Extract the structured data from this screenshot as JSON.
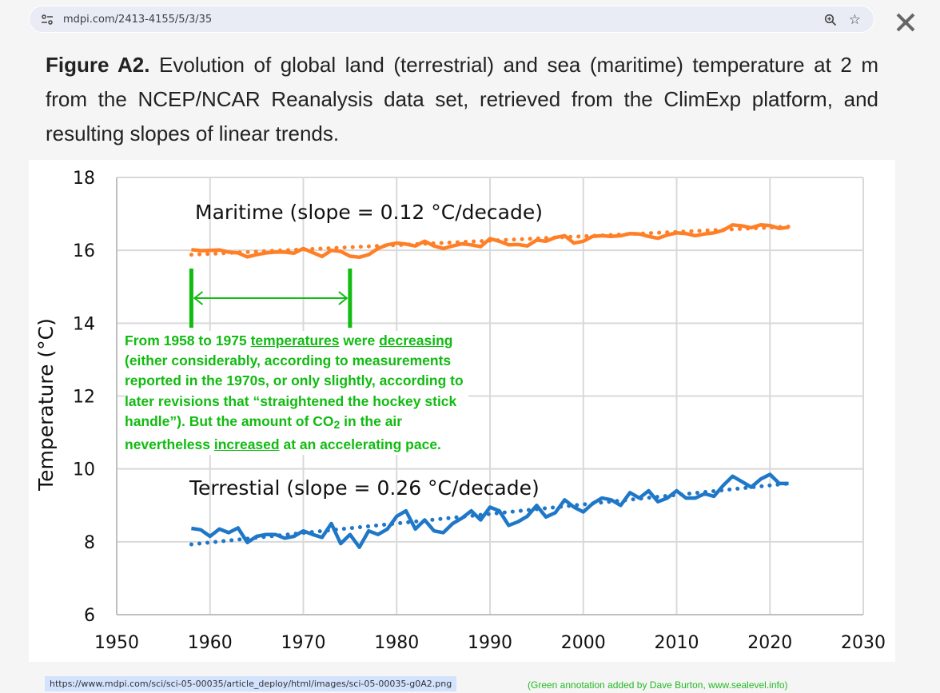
{
  "browser": {
    "url": "mdpi.com/2413-4155/5/3/35",
    "site_info_icon": "tune-icon",
    "zoom_icon": "zoom-in-icon",
    "bookmark_icon": "star-icon",
    "close_icon": "close-icon",
    "status_url": "https://www.mdpi.com/sci/sci-05-00035/article_deploy/html/images/sci-05-00035-g0A2.png"
  },
  "caption": {
    "label": "Figure A2.",
    "text": " Evolution of global land (terrestrial) and sea (maritime) temperature at 2 m from the NCEP/NCAR Reanalysis data set, retrieved from the ClimExp platform, and resulting slopes of linear trends."
  },
  "annotation": {
    "p1": "From 1958 to 1975 ",
    "u1": "temperatures",
    "p2": " were ",
    "u2": "decreasing",
    "p3": " (either considerably, according to measurements reported in the 1970s, or only slightly, according to later revisions that “straightened the hockey stick handle”).  But the amount of CO",
    "sub": "2",
    "p4": " in the air nevertheless ",
    "u3": "increased",
    "p5": " at an accelerating pace.",
    "arrow_from": 1958,
    "arrow_to": 1975,
    "color": "#11bb11",
    "credit": "(Green annotation added by Dave Burton, www.sealevel.info)"
  },
  "chart_data": {
    "type": "line",
    "title": "",
    "xlabel": "",
    "ylabel": "Temperature (°C)",
    "xlim": [
      1950,
      2030
    ],
    "ylim": [
      6,
      18
    ],
    "xticks": [
      1950,
      1960,
      1970,
      1980,
      1990,
      2000,
      2010,
      2020,
      2030
    ],
    "yticks": [
      6,
      8,
      10,
      12,
      14,
      16,
      18
    ],
    "grid": true,
    "legend": "none",
    "x": [
      1958,
      1959,
      1960,
      1961,
      1962,
      1963,
      1964,
      1965,
      1966,
      1967,
      1968,
      1969,
      1970,
      1971,
      1972,
      1973,
      1974,
      1975,
      1976,
      1977,
      1978,
      1979,
      1980,
      1981,
      1982,
      1983,
      1984,
      1985,
      1986,
      1987,
      1988,
      1989,
      1990,
      1991,
      1992,
      1993,
      1994,
      1995,
      1996,
      1997,
      1998,
      1999,
      2000,
      2001,
      2002,
      2003,
      2004,
      2005,
      2006,
      2007,
      2008,
      2009,
      2010,
      2011,
      2012,
      2013,
      2014,
      2015,
      2016,
      2017,
      2018,
      2019,
      2020,
      2021,
      2022
    ],
    "series": [
      {
        "name": "Maritime",
        "label": "Maritime (slope = 0.12 °C/decade)",
        "color": "#ff7f27",
        "slope": "0.12 °C/decade",
        "values": [
          16.02,
          15.99,
          16.0,
          16.01,
          15.95,
          15.93,
          15.82,
          15.88,
          15.93,
          15.95,
          15.95,
          15.92,
          16.05,
          15.94,
          15.83,
          16.0,
          15.97,
          15.84,
          15.81,
          15.88,
          16.05,
          16.15,
          16.2,
          16.17,
          16.12,
          16.25,
          16.12,
          16.05,
          16.12,
          16.18,
          16.15,
          16.1,
          16.32,
          16.25,
          16.15,
          16.16,
          16.12,
          16.28,
          16.25,
          16.35,
          16.4,
          16.2,
          16.25,
          16.38,
          16.4,
          16.38,
          16.4,
          16.46,
          16.45,
          16.38,
          16.33,
          16.42,
          16.48,
          16.46,
          16.4,
          16.45,
          16.48,
          16.55,
          16.7,
          16.67,
          16.62,
          16.7,
          16.68,
          16.6,
          16.63
        ],
        "trend": [
          15.88,
          16.65
        ]
      },
      {
        "name": "Terrestial",
        "label": "Terrestial (slope = 0.26 °C/decade)",
        "color": "#1f77c8",
        "slope": "0.26 °C/decade",
        "values": [
          8.37,
          8.33,
          8.15,
          8.35,
          8.25,
          8.38,
          7.98,
          8.15,
          8.2,
          8.2,
          8.1,
          8.15,
          8.3,
          8.2,
          8.12,
          8.5,
          7.95,
          8.2,
          7.85,
          8.3,
          8.2,
          8.35,
          8.7,
          8.85,
          8.35,
          8.6,
          8.3,
          8.25,
          8.5,
          8.65,
          8.85,
          8.6,
          8.95,
          8.85,
          8.45,
          8.55,
          8.7,
          9.0,
          8.68,
          8.8,
          9.15,
          8.95,
          8.82,
          9.05,
          9.2,
          9.15,
          9.0,
          9.35,
          9.2,
          9.4,
          9.1,
          9.2,
          9.4,
          9.2,
          9.2,
          9.32,
          9.25,
          9.55,
          9.8,
          9.65,
          9.5,
          9.72,
          9.85,
          9.6,
          9.6
        ],
        "trend": [
          7.93,
          9.6
        ]
      }
    ],
    "annotations": [
      "Maritime (slope = 0.12 °C/decade)",
      "Terrestial (slope = 0.26 °C/decade)"
    ]
  }
}
